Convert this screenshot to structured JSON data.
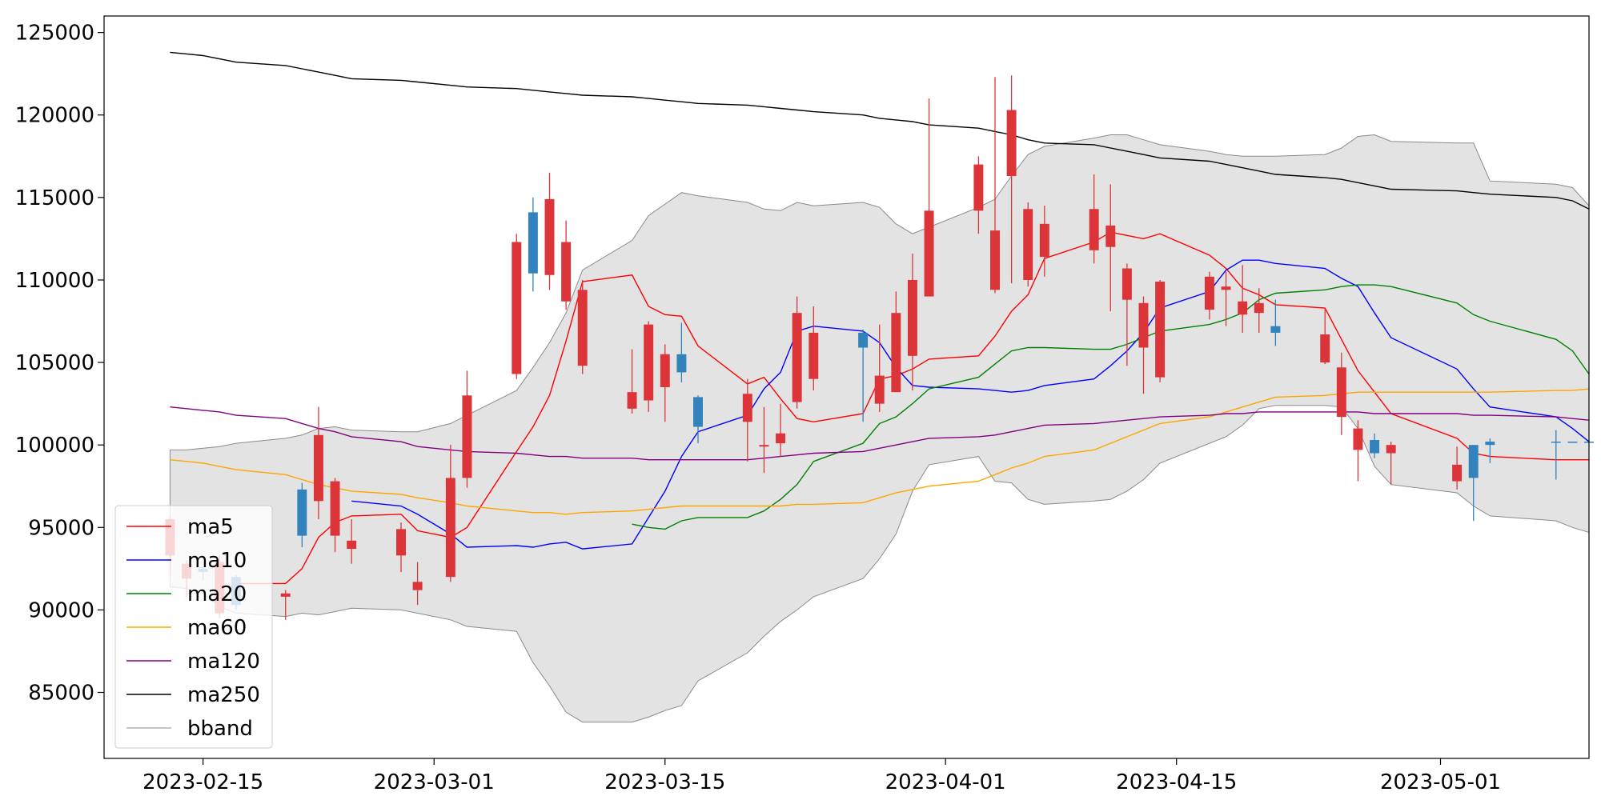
{
  "chart_data": {
    "type": "candlestick",
    "title": "",
    "xlabel": "",
    "ylabel": "",
    "grid": false,
    "legend_position": "lower-left",
    "xlim": [
      "2023-02-09",
      "2023-05-10"
    ],
    "ylim": [
      81000,
      126000
    ],
    "xticks": [
      "2023-02-15",
      "2023-03-01",
      "2023-03-15",
      "2023-04-01",
      "2023-04-15",
      "2023-05-01"
    ],
    "yticks": [
      85000,
      90000,
      95000,
      100000,
      105000,
      110000,
      115000,
      120000,
      125000
    ],
    "colors": {
      "up": "#3182bd",
      "down": "#dc3539",
      "ma5": "#ff0000",
      "ma10": "#0000ff",
      "ma20": "#008000",
      "ma60": "#ffa500",
      "ma120": "#800080",
      "ma250": "#000000",
      "bband_fill": "#e3e3e3",
      "bband_edge": "#8a8a8a"
    },
    "legend": [
      "ma5",
      "ma10",
      "ma20",
      "ma60",
      "ma120",
      "ma250",
      "bband"
    ],
    "dates": [
      "2023-02-13",
      "2023-02-14",
      "2023-02-15",
      "2023-02-16",
      "2023-02-17",
      "2023-02-20",
      "2023-02-21",
      "2023-02-22",
      "2023-02-23",
      "2023-02-24",
      "2023-02-27",
      "2023-02-28",
      "2023-03-02",
      "2023-03-03",
      "2023-03-06",
      "2023-03-07",
      "2023-03-08",
      "2023-03-09",
      "2023-03-10",
      "2023-03-13",
      "2023-03-14",
      "2023-03-15",
      "2023-03-16",
      "2023-03-17",
      "2023-03-20",
      "2023-03-21",
      "2023-03-22",
      "2023-03-23",
      "2023-03-24",
      "2023-03-27",
      "2023-03-28",
      "2023-03-29",
      "2023-03-30",
      "2023-03-31",
      "2023-04-03",
      "2023-04-04",
      "2023-04-05",
      "2023-04-06",
      "2023-04-07",
      "2023-04-10",
      "2023-04-11",
      "2023-04-12",
      "2023-04-13",
      "2023-04-14",
      "2023-04-17",
      "2023-04-18",
      "2023-04-19",
      "2023-04-20",
      "2023-04-21",
      "2023-04-24",
      "2023-04-25",
      "2023-04-26",
      "2023-04-27",
      "2023-04-28",
      "2023-05-02",
      "2023-05-03",
      "2023-05-04",
      "2023-05-08",
      "2023-05-09",
      "2023-05-10"
    ],
    "candles": {
      "open": [
        95500,
        92800,
        92300,
        92900,
        90300,
        91000,
        94500,
        100600,
        97800,
        94200,
        94900,
        91700,
        98000,
        103000,
        112300,
        110400,
        114900,
        112300,
        109400,
        103200,
        107300,
        105500,
        104400,
        101100,
        103100,
        100000,
        100700,
        108000,
        106800,
        105900,
        104200,
        108000,
        110000,
        114200,
        117000,
        113000,
        120300,
        114300,
        113400,
        114300,
        113300,
        110700,
        108600,
        109900,
        110200,
        109600,
        108700,
        108600,
        106800,
        106700,
        104700,
        101000,
        99500,
        100000,
        98800,
        98000,
        100000,
        100200,
        100200,
        100200
      ],
      "close": [
        93300,
        91900,
        92500,
        89800,
        92000,
        90800,
        97300,
        96600,
        94500,
        93700,
        93300,
        91200,
        92000,
        98000,
        104300,
        114100,
        110300,
        108700,
        104800,
        102200,
        102700,
        103500,
        105500,
        102900,
        101400,
        99900,
        100100,
        102600,
        104000,
        106800,
        102500,
        103200,
        105400,
        109000,
        114200,
        109400,
        116300,
        110000,
        111400,
        111800,
        112000,
        108800,
        105900,
        104100,
        108200,
        109400,
        107900,
        108000,
        107200,
        105000,
        101700,
        99700,
        100300,
        99500,
        97800,
        100000,
        100200,
        100200,
        100200,
        100200
      ],
      "high": [
        95700,
        93000,
        92600,
        93300,
        92100,
        91200,
        97700,
        102300,
        98000,
        95500,
        95300,
        92900,
        100000,
        104500,
        112800,
        115000,
        116500,
        113600,
        110000,
        105800,
        107500,
        106100,
        107400,
        103000,
        104000,
        102300,
        102500,
        109000,
        108400,
        107000,
        107300,
        109300,
        111600,
        121000,
        117500,
        122300,
        122400,
        114700,
        114500,
        116400,
        115800,
        111000,
        109000,
        110000,
        110500,
        110500,
        110900,
        109500,
        108800,
        108300,
        105600,
        101500,
        100700,
        100200,
        99900,
        98700,
        100400,
        100900,
        100200,
        100200
      ],
      "low": [
        92100,
        90800,
        91800,
        89500,
        90000,
        89400,
        93800,
        95500,
        93500,
        92800,
        92300,
        90300,
        91700,
        97400,
        104000,
        109300,
        109400,
        108200,
        104300,
        101900,
        102000,
        101400,
        103800,
        100100,
        99000,
        98300,
        99300,
        102200,
        103300,
        101400,
        102000,
        103800,
        103300,
        112200,
        112800,
        109200,
        109800,
        109600,
        110200,
        111000,
        108100,
        104800,
        103100,
        103800,
        107600,
        107200,
        106800,
        106800,
        106000,
        104900,
        100600,
        97800,
        99200,
        97600,
        97300,
        95400,
        98900,
        97900,
        100200,
        100200
      ]
    },
    "series": [
      {
        "name": "ma5",
        "values": [
          null,
          null,
          null,
          null,
          91600,
          91600,
          92500,
          94400,
          95300,
          95700,
          95800,
          94800,
          94400,
          95000,
          99600,
          101100,
          103000,
          106300,
          109900,
          110300,
          108400,
          107900,
          107800,
          106000,
          103700,
          104100,
          102800,
          101600,
          101400,
          101900,
          104000,
          104200,
          104600,
          105200,
          105400,
          106600,
          108100,
          109100,
          111300,
          112300,
          112900,
          112700,
          112500,
          112800,
          111500,
          110700,
          109500,
          109100,
          108500,
          108300,
          106400,
          104500,
          103200,
          101900,
          100400,
          99500,
          99300,
          99100,
          99100,
          99100
        ]
      },
      {
        "name": "ma10",
        "values": [
          null,
          null,
          null,
          null,
          null,
          null,
          null,
          null,
          null,
          96600,
          96300,
          95800,
          94600,
          93800,
          93900,
          93800,
          94000,
          94100,
          93700,
          94000,
          95600,
          97200,
          99300,
          100800,
          101800,
          103400,
          104400,
          106900,
          107200,
          106900,
          106200,
          104700,
          103600,
          103500,
          103400,
          103300,
          103200,
          103300,
          103600,
          104000,
          104800,
          105700,
          106800,
          108300,
          109300,
          110600,
          111200,
          111200,
          111000,
          110700,
          110100,
          109600,
          108000,
          106500,
          104600,
          103400,
          102300,
          101700,
          101000,
          100200
        ]
      },
      {
        "name": "ma20",
        "values": [
          null,
          null,
          null,
          null,
          null,
          null,
          null,
          null,
          null,
          null,
          null,
          null,
          null,
          null,
          null,
          null,
          null,
          null,
          null,
          95200,
          95000,
          94900,
          95400,
          95600,
          95600,
          96000,
          96700,
          97600,
          99000,
          100100,
          101300,
          101700,
          102500,
          103400,
          104100,
          104900,
          105700,
          105900,
          105900,
          105800,
          105800,
          106100,
          106500,
          106900,
          107300,
          107600,
          108000,
          108800,
          109200,
          109400,
          109600,
          109700,
          109700,
          109600,
          108600,
          107900,
          107500,
          106400,
          105700,
          104300
        ]
      },
      {
        "name": "ma60",
        "values": [
          99100,
          99000,
          98900,
          98700,
          98500,
          98200,
          97900,
          97600,
          97400,
          97200,
          97000,
          96800,
          96500,
          96300,
          96000,
          95900,
          95900,
          95800,
          95900,
          96000,
          96100,
          96200,
          96300,
          96300,
          96300,
          96300,
          96300,
          96400,
          96400,
          96500,
          96800,
          97100,
          97300,
          97500,
          97800,
          98200,
          98600,
          98900,
          99300,
          99700,
          100100,
          100500,
          100900,
          101300,
          101700,
          102000,
          102300,
          102600,
          102900,
          103000,
          103100,
          103200,
          103200,
          103200,
          103200,
          103200,
          103200,
          103300,
          103300,
          103400
        ]
      },
      {
        "name": "ma120",
        "values": [
          102300,
          102200,
          102100,
          102000,
          101800,
          101600,
          101300,
          101000,
          100800,
          100500,
          100200,
          99900,
          99700,
          99600,
          99500,
          99400,
          99300,
          99300,
          99200,
          99200,
          99100,
          99100,
          99100,
          99100,
          99100,
          99200,
          99300,
          99400,
          99500,
          99600,
          99800,
          100000,
          100200,
          100400,
          100500,
          100600,
          100800,
          101000,
          101200,
          101300,
          101400,
          101500,
          101600,
          101700,
          101800,
          101900,
          101900,
          102000,
          102000,
          102000,
          102000,
          102000,
          101900,
          101900,
          101900,
          101800,
          101800,
          101700,
          101600,
          101500
        ]
      },
      {
        "name": "ma250",
        "values": [
          123800,
          123700,
          123600,
          123400,
          123200,
          123000,
          122800,
          122600,
          122400,
          122200,
          122100,
          122000,
          121800,
          121700,
          121600,
          121500,
          121400,
          121300,
          121200,
          121100,
          121000,
          120900,
          120800,
          120700,
          120600,
          120500,
          120400,
          120300,
          120200,
          120000,
          119800,
          119700,
          119600,
          119400,
          119200,
          119000,
          118800,
          118500,
          118300,
          118200,
          118000,
          117800,
          117600,
          117400,
          117200,
          117000,
          116800,
          116600,
          116400,
          116200,
          116100,
          115900,
          115700,
          115500,
          115400,
          115300,
          115200,
          115000,
          114800,
          114300
        ]
      }
    ],
    "bband": {
      "upper": [
        99700,
        99700,
        99800,
        99900,
        100100,
        100400,
        100600,
        101000,
        101100,
        100900,
        100800,
        100800,
        101300,
        101800,
        103300,
        104700,
        106200,
        108000,
        110600,
        112400,
        113900,
        114600,
        115300,
        115100,
        114700,
        114300,
        114200,
        114700,
        114500,
        114700,
        114400,
        113400,
        112800,
        113200,
        114400,
        114900,
        116300,
        117600,
        118100,
        118600,
        118800,
        118800,
        118500,
        118200,
        117800,
        117600,
        117500,
        117500,
        117500,
        117600,
        118000,
        118700,
        118800,
        118400,
        118300,
        118300,
        116000,
        115800,
        115600,
        114500
      ],
      "lower": [
        91400,
        91300,
        91000,
        90200,
        89800,
        89600,
        89800,
        89700,
        89900,
        90100,
        90000,
        89800,
        89400,
        89000,
        88700,
        86800,
        85400,
        83800,
        83200,
        83200,
        83500,
        83900,
        84200,
        85700,
        87400,
        88400,
        89300,
        90000,
        90800,
        91900,
        93100,
        94600,
        97200,
        98800,
        99300,
        97800,
        97700,
        96700,
        96400,
        96600,
        96700,
        97200,
        97900,
        98900,
        100100,
        100500,
        101200,
        102200,
        102400,
        102400,
        102300,
        101000,
        98700,
        97600,
        97100,
        96300,
        95700,
        95400,
        95000,
        94700
      ]
    }
  }
}
